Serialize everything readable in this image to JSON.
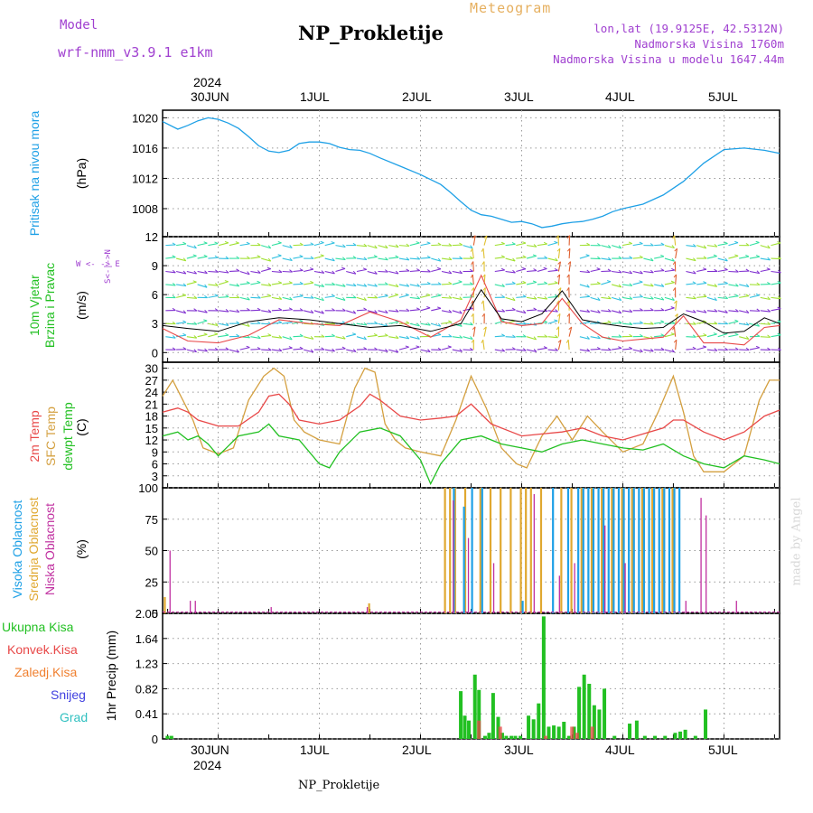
{
  "header": {
    "model_label": "Model",
    "model_name": "wrf-nmm_v3.9.1 e1km",
    "title": "NP_Prokletije",
    "meteogram": "Meteogram",
    "lonlat": "lon,lat (19.9125E, 42.5312N)",
    "elevation": "Nadmorska Visina 1760m",
    "model_elevation": "Nadmorska Visina u modelu 1647.44m"
  },
  "top_axis": {
    "year": "2024",
    "dates": [
      "30JUN",
      "1JUL",
      "2JUL",
      "3JUL",
      "4JUL",
      "5JUL"
    ]
  },
  "bottom_axis": {
    "year": "2024",
    "dates": [
      "30JUN",
      "1JUL",
      "2JUL",
      "3JUL",
      "4JUL",
      "5JUL"
    ]
  },
  "footer": {
    "station": "NP_Prokletije",
    "credit": "made by Angel"
  },
  "panel_labels": {
    "pressure": {
      "name": "Pritisak na nivou mora",
      "unit": "(hPa)"
    },
    "wind": {
      "line1": "10m Vjetar",
      "line2": "Brzina i Pravac",
      "unit": "(m/s)",
      "compass": "W <- -> E",
      "compass_ns": "S<-|->N"
    },
    "temp": {
      "t2m": "2m Temp",
      "sfc": "SFC Temp",
      "dew": "dewpt Temp",
      "unit": "(C)"
    },
    "cloud": {
      "high": "Visoka Oblacnost",
      "mid": "Srednja Oblacnost",
      "low": "Niska Oblacnost",
      "unit": "(%)"
    },
    "precip": {
      "total": "Ukupna Kisa",
      "conv": "Konvek.Kisa",
      "frozen": "Zaledj.Kisa",
      "snow": "Snijeg",
      "hail": "Grad",
      "unit": "1hr Precip (mm)"
    }
  },
  "colors": {
    "pressure": "#1ea0e6",
    "t2m": "#e84848",
    "sfc": "#d4a040",
    "dew": "#22c022",
    "high_cloud": "#1ea0e6",
    "mid_cloud": "#e0a830",
    "low_cloud": "#c030a0",
    "total_precip": "#22c022",
    "conv_precip": "#e84848",
    "frozen": "#f08030",
    "snow": "#4040e0",
    "hail": "#30c0c0",
    "gust": "#e84848",
    "speed": "#000000"
  },
  "chart_data": [
    {
      "type": "line",
      "panel": "pressure",
      "ylabel": "(hPa)",
      "ylim": [
        1004.3,
        1021
      ],
      "yticks": [
        1008,
        1012,
        1016,
        1020
      ],
      "x_unit": "days from 30JUN 00UTC",
      "xlim": [
        -0.55,
        5.55
      ],
      "grid": true,
      "series": [
        {
          "name": "Pritisak na nivou mora",
          "x": [
            -0.55,
            -0.4,
            -0.3,
            -0.2,
            -0.1,
            0,
            0.1,
            0.2,
            0.3,
            0.4,
            0.5,
            0.6,
            0.7,
            0.8,
            0.9,
            1.0,
            1.1,
            1.2,
            1.3,
            1.4,
            1.5,
            1.6,
            1.8,
            2.0,
            2.2,
            2.3,
            2.4,
            2.5,
            2.6,
            2.7,
            2.8,
            2.9,
            3.0,
            3.1,
            3.2,
            3.3,
            3.4,
            3.5,
            3.6,
            3.7,
            3.8,
            3.9,
            4.0,
            4.2,
            4.4,
            4.6,
            4.8,
            5.0,
            5.2,
            5.4,
            5.55
          ],
          "values": [
            1019.5,
            1018.5,
            1019,
            1019.6,
            1020,
            1019.8,
            1019.3,
            1018.6,
            1017.5,
            1016.3,
            1015.6,
            1015.4,
            1015.7,
            1016.6,
            1016.8,
            1016.8,
            1016.6,
            1016.1,
            1015.8,
            1015.7,
            1015.3,
            1014.7,
            1013.6,
            1012.5,
            1011.2,
            1010.1,
            1008.9,
            1007.8,
            1007.2,
            1007.0,
            1006.6,
            1006.2,
            1006.3,
            1006.0,
            1005.5,
            1005.7,
            1006.0,
            1006.2,
            1006.3,
            1006.6,
            1007.0,
            1007.6,
            1008.0,
            1008.6,
            1009.8,
            1011.6,
            1014.0,
            1015.8,
            1016.0,
            1015.7,
            1015.3
          ]
        }
      ]
    },
    {
      "type": "line",
      "panel": "wind",
      "ylabel": "(m/s)",
      "ylim": [
        -1,
        12
      ],
      "yticks": [
        0,
        3,
        6,
        9,
        12
      ],
      "x_unit": "days from 30JUN 00UTC",
      "xlim": [
        -0.55,
        5.55
      ],
      "grid": true,
      "series": [
        {
          "name": "speed",
          "x": [
            -0.55,
            -0.3,
            0,
            0.3,
            0.6,
            0.9,
            1.2,
            1.5,
            1.8,
            2.1,
            2.4,
            2.6,
            2.8,
            3.0,
            3.2,
            3.4,
            3.6,
            3.8,
            4.0,
            4.2,
            4.4,
            4.6,
            4.8,
            5.0,
            5.2,
            5.4,
            5.55
          ],
          "values": [
            2.8,
            2.5,
            2.2,
            3.2,
            3.6,
            3.4,
            3.0,
            2.6,
            2.8,
            2.2,
            3.0,
            6.5,
            3.5,
            3.2,
            4.0,
            6.4,
            3.4,
            3.0,
            2.7,
            2.5,
            2.6,
            4.0,
            3.2,
            2.0,
            2.2,
            3.6,
            3.0
          ]
        },
        {
          "name": "gust",
          "x": [
            -0.55,
            -0.3,
            0,
            0.3,
            0.6,
            0.9,
            1.2,
            1.5,
            1.8,
            2.1,
            2.4,
            2.6,
            2.8,
            3.0,
            3.2,
            3.4,
            3.6,
            3.8,
            4.0,
            4.2,
            4.4,
            4.6,
            4.8,
            5.0,
            5.2,
            5.4,
            5.55
          ],
          "values": [
            2.5,
            1.2,
            1.0,
            1.8,
            3.4,
            3.0,
            2.8,
            4.2,
            3.2,
            1.6,
            3.4,
            8.0,
            3.2,
            2.8,
            3.0,
            5.6,
            3.0,
            1.6,
            1.2,
            1.4,
            1.6,
            3.8,
            1.0,
            1.0,
            0.8,
            2.6,
            2.8
          ]
        }
      ]
    },
    {
      "type": "line",
      "panel": "temperature",
      "ylabel": "(C)",
      "ylim": [
        0,
        31.5
      ],
      "yticks": [
        3,
        6,
        9,
        12,
        15,
        18,
        21,
        24,
        27,
        30
      ],
      "x_unit": "days from 30JUN 00UTC",
      "xlim": [
        -0.55,
        5.55
      ],
      "grid": true,
      "series": [
        {
          "name": "2m Temp",
          "x": [
            -0.55,
            -0.4,
            -0.3,
            -0.2,
            0,
            0.2,
            0.4,
            0.5,
            0.6,
            0.7,
            0.8,
            1.0,
            1.2,
            1.4,
            1.5,
            1.6,
            1.8,
            2.0,
            2.2,
            2.35,
            2.5,
            2.7,
            2.9,
            3.0,
            3.2,
            3.4,
            3.6,
            3.8,
            4.0,
            4.2,
            4.4,
            4.5,
            4.6,
            4.8,
            5.0,
            5.2,
            5.4,
            5.55
          ],
          "values": [
            19,
            20,
            19,
            17,
            15.5,
            15.5,
            19,
            23,
            23.5,
            21,
            17,
            16,
            17,
            20.5,
            23.5,
            22,
            18,
            17,
            17.5,
            18,
            21,
            16,
            14,
            13,
            13.5,
            14,
            15,
            13,
            12,
            13.5,
            15,
            17,
            17,
            14,
            12,
            14,
            18,
            19.5
          ]
        },
        {
          "name": "SFC Temp",
          "x": [
            -0.55,
            -0.45,
            -0.35,
            -0.25,
            -0.15,
            0,
            0.15,
            0.3,
            0.45,
            0.55,
            0.65,
            0.75,
            0.85,
            1.0,
            1.2,
            1.35,
            1.45,
            1.55,
            1.65,
            1.75,
            1.85,
            2.0,
            2.2,
            2.35,
            2.5,
            2.65,
            2.8,
            2.95,
            3.05,
            3.2,
            3.35,
            3.5,
            3.65,
            3.8,
            4.0,
            4.2,
            4.35,
            4.5,
            4.6,
            4.7,
            4.8,
            5.0,
            5.2,
            5.35,
            5.45,
            5.55
          ],
          "values": [
            23,
            27,
            22,
            17,
            10,
            8.5,
            10,
            22,
            28,
            30,
            28,
            17,
            14,
            12,
            11,
            25,
            30,
            29,
            16,
            12,
            10,
            9,
            8,
            17,
            28,
            20,
            10,
            6,
            5,
            13,
            18,
            12,
            18,
            14,
            9,
            11,
            19,
            28,
            19,
            8,
            4,
            4,
            8,
            22,
            27,
            27
          ]
        },
        {
          "name": "dewpt Temp",
          "x": [
            -0.55,
            -0.4,
            -0.3,
            -0.2,
            -0.1,
            0,
            0.2,
            0.4,
            0.5,
            0.6,
            0.8,
            1.0,
            1.1,
            1.2,
            1.4,
            1.6,
            1.8,
            2.0,
            2.1,
            2.2,
            2.4,
            2.6,
            2.8,
            3.0,
            3.2,
            3.4,
            3.6,
            3.8,
            4.0,
            4.2,
            4.4,
            4.6,
            4.8,
            5.0,
            5.2,
            5.4,
            5.55
          ],
          "values": [
            13,
            14,
            12,
            13,
            11,
            8,
            13,
            14,
            16,
            13,
            12,
            6,
            5,
            9,
            14,
            15,
            13,
            7,
            1,
            6,
            12,
            13,
            11,
            10,
            9,
            11,
            12,
            11,
            10,
            9.5,
            11,
            8,
            6,
            5,
            8,
            7,
            6
          ]
        }
      ]
    },
    {
      "type": "bar",
      "panel": "cloud",
      "ylabel": "(%)",
      "ylim": [
        0,
        100
      ],
      "yticks": [
        0,
        25,
        50,
        75,
        100
      ],
      "x_unit": "days from 30JUN 00UTC",
      "xlim": [
        -0.55,
        5.55
      ],
      "grid": true,
      "series": [
        {
          "name": "Niska Oblacnost",
          "x": [
            -0.5,
            -0.3,
            -0.25,
            0.5,
            1.45,
            2.3,
            2.45,
            2.7,
            3.1,
            3.35,
            3.5,
            3.8,
            4.0,
            4.6,
            4.75,
            4.8,
            5.1
          ],
          "values": [
            50,
            10,
            10,
            5,
            5,
            90,
            60,
            40,
            95,
            30,
            40,
            70,
            40,
            10,
            92,
            78,
            10
          ]
        },
        {
          "name": "Srednja Oblacnost",
          "x": [
            -0.52,
            1.5,
            2.25,
            2.3,
            2.35,
            2.45,
            2.6,
            2.7,
            2.8,
            2.9,
            3.0,
            3.05,
            3.1,
            3.2,
            3.4,
            3.5,
            3.6,
            3.7,
            3.8,
            3.9,
            4.0,
            4.1,
            4.2,
            4.3,
            4.4,
            4.5
          ],
          "values": [
            13,
            8,
            100,
            100,
            100,
            100,
            100,
            100,
            100,
            100,
            100,
            100,
            100,
            100,
            100,
            100,
            100,
            100,
            100,
            100,
            100,
            100,
            100,
            100,
            100,
            100
          ]
        },
        {
          "name": "Visoka Oblacnost",
          "x": [
            2.32,
            2.42,
            2.5,
            2.6,
            3.0,
            3.3,
            3.45,
            3.55,
            3.6,
            3.65,
            3.7,
            3.75,
            3.8,
            3.85,
            3.9,
            3.95,
            4.0,
            4.05,
            4.1,
            4.15,
            4.2,
            4.25,
            4.3,
            4.35,
            4.4,
            4.45,
            4.5,
            4.55
          ],
          "values": [
            100,
            85,
            100,
            100,
            10,
            100,
            100,
            100,
            100,
            100,
            100,
            100,
            100,
            100,
            100,
            100,
            100,
            100,
            100,
            100,
            100,
            100,
            100,
            100,
            100,
            100,
            100,
            100
          ]
        }
      ]
    },
    {
      "type": "bar",
      "panel": "precip",
      "ylabel": "1hr Precip (mm)",
      "ylim": [
        0,
        2.05
      ],
      "yticks": [
        0,
        0.41,
        0.82,
        1.23,
        1.64,
        2.05
      ],
      "x_unit": "days from 30JUN 00UTC",
      "xlim": [
        -0.55,
        5.55
      ],
      "grid": true,
      "series": [
        {
          "name": "Ukupna Kisa",
          "x": [
            -0.52,
            -0.48,
            2.38,
            2.42,
            2.46,
            2.52,
            2.56,
            2.62,
            2.66,
            2.7,
            2.75,
            2.79,
            2.83,
            2.88,
            2.92,
            2.97,
            3.05,
            3.1,
            3.15,
            3.2,
            3.25,
            3.3,
            3.35,
            3.4,
            3.45,
            3.5,
            3.55,
            3.6,
            3.65,
            3.7,
            3.75,
            3.8,
            3.9,
            4.05,
            4.12,
            4.2,
            4.3,
            4.4,
            4.5,
            4.55,
            4.6,
            4.7,
            4.8
          ],
          "values": [
            0.05,
            0.05,
            0.78,
            0.38,
            0.3,
            1.05,
            0.8,
            0.05,
            0.1,
            0.75,
            0.36,
            0.1,
            0.05,
            0.05,
            0.05,
            0.05,
            0.38,
            0.32,
            0.58,
            2.0,
            0.2,
            0.22,
            0.2,
            0.28,
            0.05,
            0.2,
            0.85,
            1.05,
            0.9,
            0.55,
            0.48,
            0.82,
            0.05,
            0.25,
            0.3,
            0.05,
            0.05,
            0.05,
            0.1,
            0.12,
            0.15,
            0.05,
            0.48
          ]
        },
        {
          "name": "Konvek.Kisa",
          "x": [
            2.56,
            2.77,
            3.22,
            3.48,
            3.53,
            3.68
          ],
          "values": [
            0.3,
            0.2,
            0.05,
            0.2,
            0.1,
            0.2
          ]
        }
      ]
    },
    {
      "type": "barb",
      "panel": "wind-direction",
      "description": "10m wind arrows colored by speed",
      "colors_by_speed": [
        "#30c0e0",
        "#30e0a0",
        "#a0e030",
        "#e0c030",
        "#e06030",
        "#8030d0"
      ]
    }
  ]
}
